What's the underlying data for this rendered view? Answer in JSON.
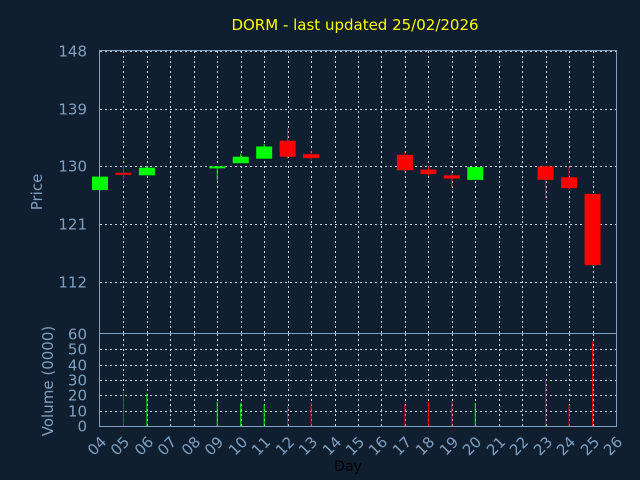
{
  "chart_data": {
    "type": "candlestick",
    "title": "DORM - last updated 25/02/2026",
    "ylabel": "Price",
    "volume_label": "Volume (0000)",
    "xlabel": "Day",
    "price_ticks": [
      "148",
      "139",
      "130",
      "121",
      "112"
    ],
    "volume_ticks": [
      "60",
      "50",
      "40",
      "30",
      "20",
      "10",
      "0"
    ],
    "day_ticks": [
      "04",
      "05",
      "06",
      "07",
      "08",
      "09",
      "10",
      "11",
      "12",
      "13",
      "14",
      "15",
      "16",
      "17",
      "18",
      "19",
      "20",
      "21",
      "22",
      "23",
      "24",
      "25",
      "26"
    ],
    "price_range": [
      104,
      148
    ],
    "volume_range": [
      0,
      60
    ],
    "colors": {
      "up": "#00ff00",
      "down": "#ff0000",
      "title": "#ffff00",
      "axis": "#7f9fc0",
      "background": "#0f1f30"
    },
    "candles": [
      {
        "day": "04",
        "open": 126.3,
        "high": 128.4,
        "low": 126.3,
        "close": 128.4,
        "volume": 0
      },
      {
        "day": "05",
        "open": 129.0,
        "high": 130.0,
        "low": 127.9,
        "close": 128.7,
        "volume": 22
      },
      {
        "day": "06",
        "open": 128.6,
        "high": 130.0,
        "low": 128.6,
        "close": 129.8,
        "volume": 21
      },
      {
        "day": "09",
        "open": 129.8,
        "high": 130.0,
        "low": 127.8,
        "close": 130.0,
        "volume": 16
      },
      {
        "day": "10",
        "open": 130.5,
        "high": 132.0,
        "low": 130.5,
        "close": 131.5,
        "volume": 15
      },
      {
        "day": "11",
        "open": 131.2,
        "high": 133.5,
        "low": 131.2,
        "close": 133.1,
        "volume": 14
      },
      {
        "day": "12",
        "open": 134.0,
        "high": 136.0,
        "low": 131.2,
        "close": 131.5,
        "volume": 13
      },
      {
        "day": "13",
        "open": 131.9,
        "high": 132.5,
        "low": 131.0,
        "close": 131.3,
        "volume": 15
      },
      {
        "day": "17",
        "open": 131.8,
        "high": 132.3,
        "low": 129.2,
        "close": 129.4,
        "volume": 14
      },
      {
        "day": "18",
        "open": 129.5,
        "high": 130.0,
        "low": 128.6,
        "close": 128.8,
        "volume": 16
      },
      {
        "day": "19",
        "open": 128.6,
        "high": 128.9,
        "low": 126.8,
        "close": 128.1,
        "volume": 16
      },
      {
        "day": "20",
        "open": 127.9,
        "high": 130.0,
        "low": 127.9,
        "close": 129.9,
        "volume": 15
      },
      {
        "day": "23",
        "open": 130.0,
        "high": 130.1,
        "low": 125.0,
        "close": 127.9,
        "volume": 30
      },
      {
        "day": "24",
        "open": 128.3,
        "high": 130.0,
        "low": 126.4,
        "close": 126.6,
        "volume": 14
      },
      {
        "day": "25",
        "open": 125.7,
        "high": 125.7,
        "low": 114.6,
        "close": 114.6,
        "volume": 55
      }
    ]
  }
}
